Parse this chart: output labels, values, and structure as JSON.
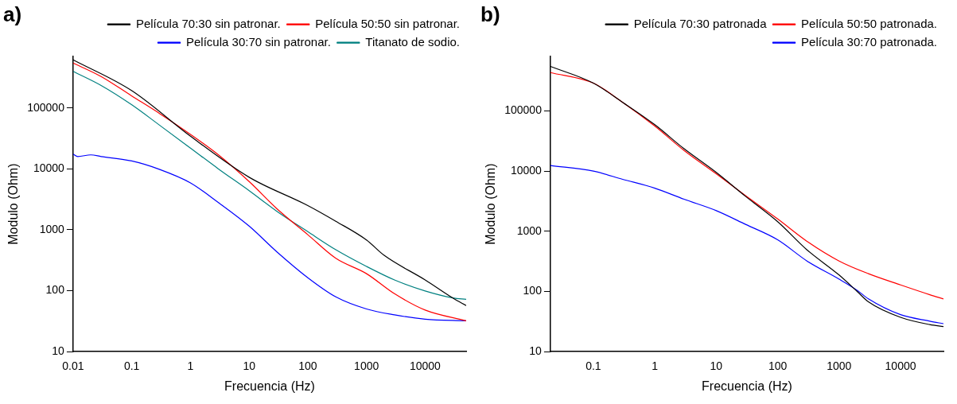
{
  "chart_data": [
    {
      "type": "line",
      "title": "a)",
      "xlabel": "Frecuencia (Hz)",
      "ylabel": "Modulo (Ohm)",
      "log": "xy",
      "legend": "top right",
      "grid": false,
      "marker": "none",
      "line_style": "solid",
      "xlim": [
        0.01,
        50000
      ],
      "ylim": [
        10,
        700000
      ],
      "xticks": [
        0.01,
        0.1,
        1,
        10,
        100,
        1000,
        10000
      ],
      "yticks": [
        10,
        100,
        1000,
        10000,
        100000
      ],
      "series": [
        {
          "name": "Película 70:30 sin patronar.",
          "color": "#000000",
          "x": [
            0.01,
            0.1,
            1,
            10,
            100,
            300,
            1000,
            2000,
            10000,
            30000,
            50000
          ],
          "values": [
            620000,
            193000,
            34500,
            7300,
            2500,
            1380,
            680,
            380,
            150,
            75,
            57
          ]
        },
        {
          "name": "Película 50:50 sin patronar.",
          "color": "#ff0000",
          "x": [
            0.01,
            0.03,
            0.1,
            0.3,
            1,
            3,
            10,
            30,
            100,
            300,
            1000,
            3000,
            10000,
            50000
          ],
          "values": [
            550000,
            330000,
            158000,
            81000,
            37000,
            17000,
            6200,
            2200,
            830,
            340,
            190,
            89,
            48,
            32
          ]
        },
        {
          "name": "Película 30:70 sin patronar.",
          "color": "#0000ff",
          "x": [
            0.01,
            0.012,
            0.02,
            0.03,
            0.1,
            0.3,
            1,
            3,
            10,
            30,
            100,
            300,
            1000,
            3000,
            10000,
            50000
          ],
          "values": [
            17500,
            16000,
            17000,
            16000,
            13500,
            9800,
            5900,
            2800,
            1150,
            430,
            163,
            79,
            50,
            40,
            34,
            32
          ]
        },
        {
          "name": "Titanato de sodio.",
          "color": "#008080",
          "x": [
            0.01,
            0.03,
            0.1,
            0.3,
            1,
            3,
            10,
            30,
            100,
            300,
            1000,
            3000,
            10000,
            30000,
            50000
          ],
          "values": [
            400000,
            235000,
            113000,
            52000,
            22000,
            10000,
            4400,
            2000,
            930,
            470,
            250,
            150,
            99,
            76,
            72
          ]
        }
      ]
    },
    {
      "type": "line",
      "title": "b)",
      "xlabel": "Frecuencia (Hz)",
      "ylabel": "Modulo (Ohm)",
      "log": "xy",
      "legend": "top right",
      "grid": false,
      "marker": "none",
      "line_style": "solid",
      "xlim": [
        0.02,
        50000
      ],
      "ylim": [
        10,
        800000
      ],
      "xticks": [
        0.1,
        1,
        10,
        100,
        1000,
        10000
      ],
      "yticks": [
        10,
        100,
        1000,
        10000,
        100000
      ],
      "series": [
        {
          "name": "Película 70:30 patronada",
          "color": "#000000",
          "x": [
            0.02,
            0.1,
            0.3,
            1,
            3,
            10,
            30,
            100,
            300,
            1000,
            2000,
            3000,
            10000,
            30000,
            50000
          ],
          "values": [
            550000,
            290000,
            139000,
            59000,
            23500,
            9500,
            3800,
            1440,
            490,
            187,
            98,
            67,
            37,
            28,
            26
          ]
        },
        {
          "name": "Película 50:50 patronada.",
          "color": "#ff0000",
          "x": [
            0.02,
            0.1,
            0.3,
            1,
            3,
            10,
            30,
            100,
            300,
            1000,
            3000,
            10000,
            30000,
            50000
          ],
          "values": [
            435000,
            290000,
            139000,
            56000,
            22000,
            9000,
            3900,
            1600,
            680,
            320,
            197,
            128,
            88,
            75
          ]
        },
        {
          "name": "Película 30:70 patronada.",
          "color": "#0000ff",
          "x": [
            0.02,
            0.1,
            0.3,
            1,
            3,
            10,
            30,
            100,
            300,
            1000,
            2000,
            3000,
            10000,
            30000,
            50000
          ],
          "values": [
            12400,
            10000,
            7300,
            5200,
            3400,
            2200,
            1300,
            720,
            320,
            160,
            103,
            75,
            41,
            32,
            29
          ]
        }
      ]
    }
  ]
}
